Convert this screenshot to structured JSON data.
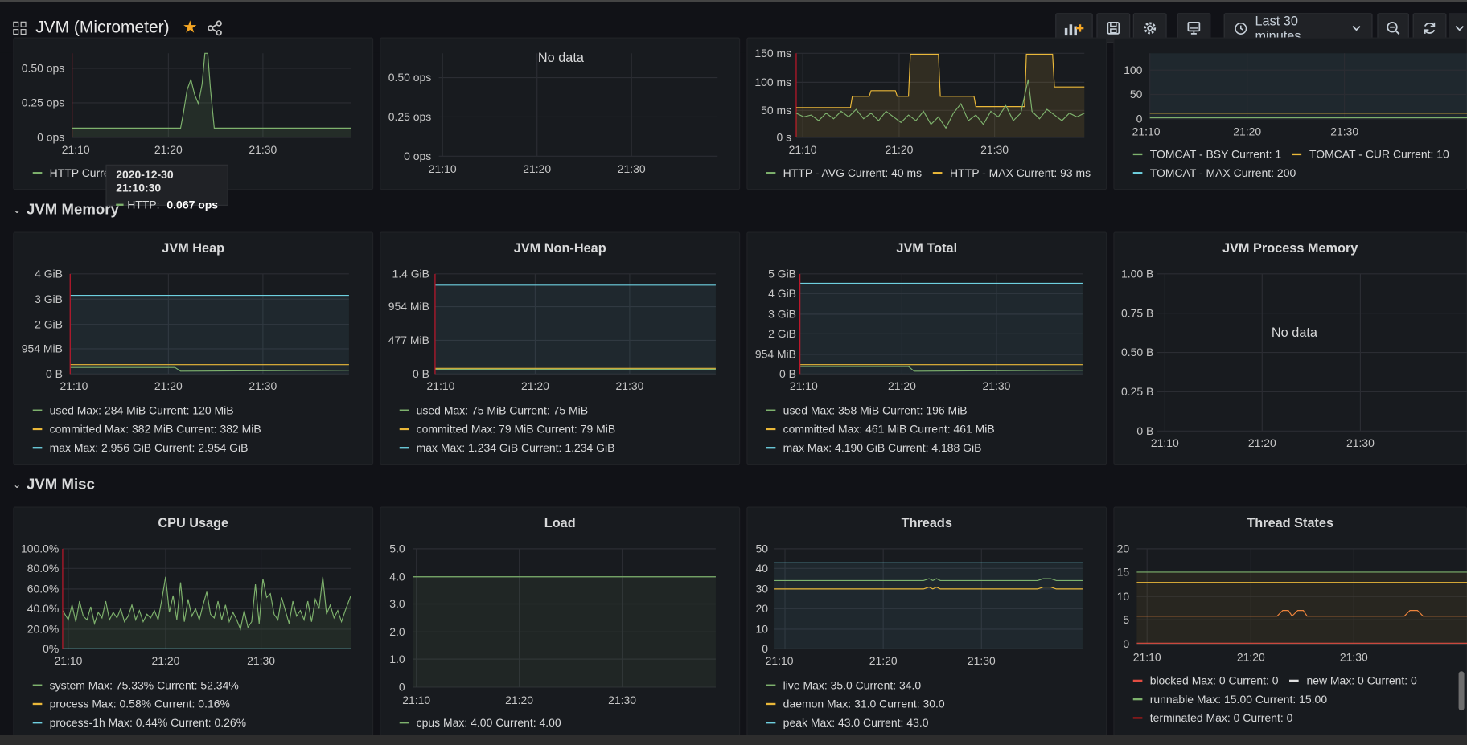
{
  "header": {
    "title": "JVM (Micrometer)",
    "time_range": "Last 30 minutes"
  },
  "icons": [
    "grid-icon",
    "star-icon",
    "share-icon",
    "add-panel-icon",
    "save-icon",
    "settings-icon",
    "tv-icon",
    "clock-icon",
    "chevron-down-icon",
    "zoom-out-icon",
    "refresh-icon"
  ],
  "colors": {
    "green": "#7eb26d",
    "yellow": "#eab839",
    "blue": "#6ed0e0",
    "red": "#e24d42",
    "orange": "#ef843c",
    "bg": "#111217",
    "panel": "#181b1f"
  },
  "x_ticks": [
    "21:10",
    "21:20",
    "21:30"
  ],
  "tooltip": {
    "time": "2020-12-30 21:10:30",
    "series": "HTTP:",
    "value": "0.067 ops"
  },
  "rows": {
    "memory": "JVM Memory",
    "misc": "JVM Misc"
  },
  "panels": {
    "p1": {
      "yticks": [
        "0.50 ops",
        "0.25 ops",
        "0 ops"
      ],
      "legend": [
        "HTTP  Curre"
      ]
    },
    "p2": {
      "nodata": "No data",
      "yticks": [
        "0.50 ops",
        "0.25 ops",
        "0 ops"
      ]
    },
    "p3": {
      "yticks": [
        "150 ms",
        "100 ms",
        "50 ms",
        "0 s"
      ],
      "legend": [
        "HTTP - AVG  Current: 40 ms",
        "HTTP - MAX  Current: 93 ms"
      ]
    },
    "p4": {
      "yticks": [
        "100",
        "50",
        "0"
      ],
      "legend": [
        "TOMCAT - BSY  Current: 1",
        "TOMCAT - CUR  Current: 10",
        "TOMCAT - MAX  Current: 200"
      ]
    },
    "heap": {
      "title": "JVM Heap",
      "yticks": [
        "4 GiB",
        "3 GiB",
        "2 GiB",
        "954 MiB",
        "0 B"
      ],
      "legend": [
        "used  Max: 284 MiB  Current: 120 MiB",
        "committed  Max: 382 MiB  Current: 382 MiB",
        "max  Max: 2.956 GiB  Current: 2.954 GiB"
      ]
    },
    "nonheap": {
      "title": "JVM Non-Heap",
      "yticks": [
        "1.4 GiB",
        "954 MiB",
        "477 MiB",
        "0 B"
      ],
      "legend": [
        "used  Max: 75 MiB  Current: 75 MiB",
        "committed  Max: 79 MiB  Current: 79 MiB",
        "max  Max: 1.234 GiB  Current: 1.234 GiB"
      ]
    },
    "total": {
      "title": "JVM Total",
      "yticks": [
        "5 GiB",
        "4 GiB",
        "3 GiB",
        "2 GiB",
        "954 MiB",
        "0 B"
      ],
      "legend": [
        "used  Max: 358 MiB  Current: 196 MiB",
        "committed  Max: 461 MiB  Current: 461 MiB",
        "max  Max: 4.190 GiB  Current: 4.188 GiB"
      ]
    },
    "process": {
      "title": "JVM Process Memory",
      "nodata": "No data",
      "yticks": [
        "1.00 B",
        "0.75 B",
        "0.50 B",
        "0.25 B",
        "0 B"
      ]
    },
    "cpu": {
      "title": "CPU Usage",
      "yticks": [
        "100.0%",
        "80.0%",
        "60.0%",
        "40.0%",
        "20.0%",
        "0%"
      ],
      "legend": [
        "system  Max: 75.33%  Current: 52.34%",
        "process  Max: 0.58%  Current: 0.16%",
        "process-1h  Max: 0.44%  Current: 0.26%"
      ]
    },
    "load": {
      "title": "Load",
      "yticks": [
        "5.0",
        "4.0",
        "3.0",
        "2.0",
        "1.0",
        "0"
      ],
      "legend": [
        "cpus  Max: 4.00  Current: 4.00"
      ]
    },
    "threads": {
      "title": "Threads",
      "yticks": [
        "50",
        "40",
        "30",
        "20",
        "10",
        "0"
      ],
      "legend": [
        "live  Max: 35.0  Current: 34.0",
        "daemon  Max: 31.0  Current: 30.0",
        "peak  Max: 43.0  Current: 43.0"
      ]
    },
    "states": {
      "title": "Thread States",
      "yticks": [
        "20",
        "15",
        "10",
        "5",
        "0"
      ],
      "legend": [
        "blocked  Max: 0  Current: 0",
        "new  Max: 0  Current: 0",
        "runnable  Max: 15.00  Current: 15.00",
        "terminated  Max: 0  Current: 0"
      ]
    }
  }
}
